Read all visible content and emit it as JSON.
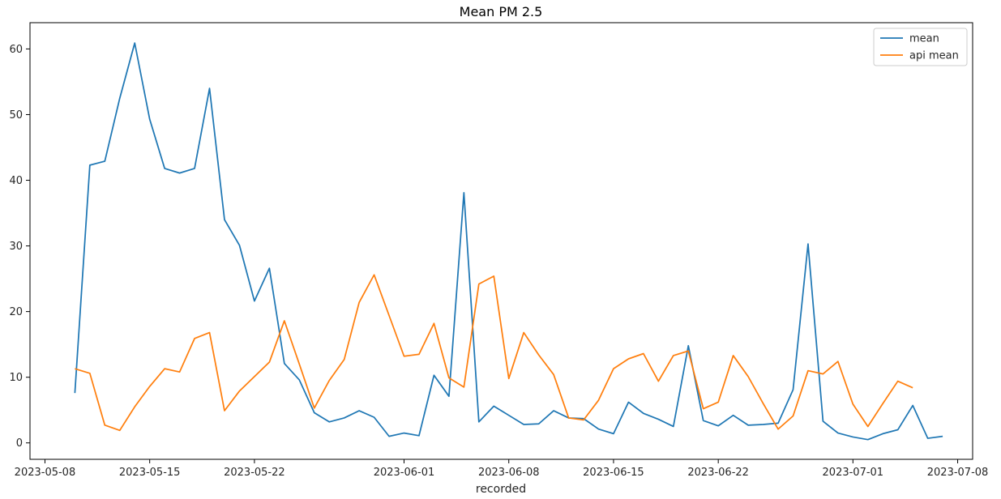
{
  "chart_data": {
    "type": "line",
    "title": "Mean PM 2.5",
    "xlabel": "recorded",
    "ylabel": "",
    "x_type": "date",
    "xlim": [
      "2023-05-07",
      "2023-07-09"
    ],
    "ylim": [
      -2.5,
      64
    ],
    "x_ticks": [
      "2023-05-08",
      "2023-05-15",
      "2023-05-22",
      "2023-06-01",
      "2023-06-08",
      "2023-06-15",
      "2023-06-22",
      "2023-07-01",
      "2023-07-08"
    ],
    "y_ticks": [
      0,
      10,
      20,
      30,
      40,
      50,
      60
    ],
    "grid": false,
    "legend": "top-right",
    "series": [
      {
        "name": "mean",
        "color": "#1f77b4",
        "points": [
          [
            "2023-05-10",
            7.6
          ],
          [
            "2023-05-11",
            42.3
          ],
          [
            "2023-05-12",
            42.9
          ],
          [
            "2023-05-13",
            52.5
          ],
          [
            "2023-05-14",
            60.9
          ],
          [
            "2023-05-15",
            49.3
          ],
          [
            "2023-05-16",
            41.8
          ],
          [
            "2023-05-17",
            41.1
          ],
          [
            "2023-05-18",
            41.8
          ],
          [
            "2023-05-19",
            54.0
          ],
          [
            "2023-05-20",
            34.0
          ],
          [
            "2023-05-21",
            30.1
          ],
          [
            "2023-05-22",
            21.6
          ],
          [
            "2023-05-23",
            26.6
          ],
          [
            "2023-05-24",
            12.1
          ],
          [
            "2023-05-25",
            9.6
          ],
          [
            "2023-05-26",
            4.6
          ],
          [
            "2023-05-27",
            3.2
          ],
          [
            "2023-05-28",
            3.8
          ],
          [
            "2023-05-29",
            4.9
          ],
          [
            "2023-05-30",
            3.9
          ],
          [
            "2023-05-31",
            1.0
          ],
          [
            "2023-06-01",
            1.5
          ],
          [
            "2023-06-02",
            1.1
          ],
          [
            "2023-06-03",
            10.3
          ],
          [
            "2023-06-04",
            7.1
          ],
          [
            "2023-06-05",
            38.1
          ],
          [
            "2023-06-06",
            3.2
          ],
          [
            "2023-06-07",
            5.6
          ],
          [
            "2023-06-08",
            4.2
          ],
          [
            "2023-06-09",
            2.8
          ],
          [
            "2023-06-10",
            2.9
          ],
          [
            "2023-06-11",
            4.9
          ],
          [
            "2023-06-12",
            3.8
          ],
          [
            "2023-06-13",
            3.7
          ],
          [
            "2023-06-14",
            2.1
          ],
          [
            "2023-06-15",
            1.4
          ],
          [
            "2023-06-16",
            6.2
          ],
          [
            "2023-06-17",
            4.5
          ],
          [
            "2023-06-18",
            3.6
          ],
          [
            "2023-06-19",
            2.5
          ],
          [
            "2023-06-20",
            14.8
          ],
          [
            "2023-06-21",
            3.4
          ],
          [
            "2023-06-22",
            2.6
          ],
          [
            "2023-06-23",
            4.2
          ],
          [
            "2023-06-24",
            2.7
          ],
          [
            "2023-06-25",
            2.8
          ],
          [
            "2023-06-26",
            3.0
          ],
          [
            "2023-06-27",
            8.1
          ],
          [
            "2023-06-28",
            30.3
          ],
          [
            "2023-06-29",
            3.3
          ],
          [
            "2023-06-30",
            1.5
          ],
          [
            "2023-07-01",
            0.9
          ],
          [
            "2023-07-02",
            0.5
          ],
          [
            "2023-07-03",
            1.4
          ],
          [
            "2023-07-04",
            2.0
          ],
          [
            "2023-07-05",
            5.7
          ],
          [
            "2023-07-06",
            0.7
          ],
          [
            "2023-07-07",
            1.0
          ]
        ]
      },
      {
        "name": "api mean",
        "color": "#ff7f0e",
        "points": [
          [
            "2023-05-10",
            11.3
          ],
          [
            "2023-05-11",
            10.6
          ],
          [
            "2023-05-12",
            2.7
          ],
          [
            "2023-05-13",
            1.9
          ],
          [
            "2023-05-14",
            5.5
          ],
          [
            "2023-05-15",
            8.6
          ],
          [
            "2023-05-16",
            11.3
          ],
          [
            "2023-05-17",
            10.8
          ],
          [
            "2023-05-18",
            15.9
          ],
          [
            "2023-05-19",
            16.8
          ],
          [
            "2023-05-20",
            4.9
          ],
          [
            "2023-05-21",
            7.9
          ],
          [
            "2023-05-22",
            10.1
          ],
          [
            "2023-05-23",
            12.3
          ],
          [
            "2023-05-24",
            18.6
          ],
          [
            "2023-05-25",
            12.0
          ],
          [
            "2023-05-26",
            5.3
          ],
          [
            "2023-05-27",
            9.5
          ],
          [
            "2023-05-28",
            12.7
          ],
          [
            "2023-05-29",
            21.4
          ],
          [
            "2023-05-30",
            25.6
          ],
          [
            "2023-05-31",
            19.4
          ],
          [
            "2023-06-01",
            13.2
          ],
          [
            "2023-06-02",
            13.5
          ],
          [
            "2023-06-03",
            18.2
          ],
          [
            "2023-06-04",
            9.9
          ],
          [
            "2023-06-05",
            8.5
          ],
          [
            "2023-06-06",
            24.2
          ],
          [
            "2023-06-07",
            25.4
          ],
          [
            "2023-06-08",
            9.8
          ],
          [
            "2023-06-09",
            16.8
          ],
          [
            "2023-06-10",
            13.4
          ],
          [
            "2023-06-11",
            10.4
          ],
          [
            "2023-06-12",
            3.8
          ],
          [
            "2023-06-13",
            3.5
          ],
          [
            "2023-06-14",
            6.5
          ],
          [
            "2023-06-15",
            11.3
          ],
          [
            "2023-06-16",
            12.8
          ],
          [
            "2023-06-17",
            13.6
          ],
          [
            "2023-06-18",
            9.4
          ],
          [
            "2023-06-19",
            13.3
          ],
          [
            "2023-06-20",
            14.0
          ],
          [
            "2023-06-21",
            5.2
          ],
          [
            "2023-06-22",
            6.2
          ],
          [
            "2023-06-23",
            13.3
          ],
          [
            "2023-06-24",
            10.1
          ],
          [
            "2023-06-25",
            6.0
          ],
          [
            "2023-06-26",
            2.1
          ],
          [
            "2023-06-27",
            4.1
          ],
          [
            "2023-06-28",
            11.0
          ],
          [
            "2023-06-29",
            10.5
          ],
          [
            "2023-06-30",
            12.4
          ],
          [
            "2023-07-01",
            5.9
          ],
          [
            "2023-07-02",
            2.5
          ],
          [
            "2023-07-03",
            6.0
          ],
          [
            "2023-07-04",
            9.4
          ],
          [
            "2023-07-05",
            8.4
          ]
        ]
      }
    ]
  }
}
